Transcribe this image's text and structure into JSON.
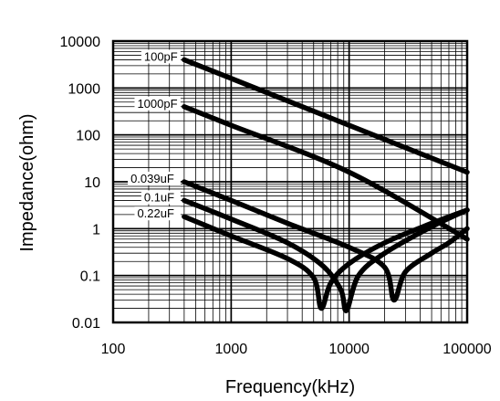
{
  "chart_data": {
    "type": "line",
    "title": "",
    "xlabel": "Frequency(kHz)",
    "ylabel": "Impedance(ohm)",
    "x_scale": "log",
    "y_scale": "log",
    "xlim": [
      100,
      100000
    ],
    "ylim": [
      0.01,
      10000
    ],
    "x_ticks": [
      {
        "value": 100,
        "label": "100"
      },
      {
        "value": 1000,
        "label": "1000"
      },
      {
        "value": 10000,
        "label": "10000"
      },
      {
        "value": 100000,
        "label": "100000"
      }
    ],
    "y_ticks": [
      {
        "value": 10000,
        "label": "10000"
      },
      {
        "value": 1000,
        "label": "1000"
      },
      {
        "value": 100,
        "label": "100"
      },
      {
        "value": 10,
        "label": "10"
      },
      {
        "value": 1,
        "label": "1"
      },
      {
        "value": 0.1,
        "label": "0.1"
      },
      {
        "value": 0.01,
        "label": "0.01"
      }
    ],
    "grid": true,
    "series": [
      {
        "name": "100pF",
        "points": [
          [
            400,
            4000
          ],
          [
            1000,
            1600
          ],
          [
            10000,
            160
          ],
          [
            100000,
            16
          ]
        ]
      },
      {
        "name": "1000pF",
        "points": [
          [
            400,
            400
          ],
          [
            1000,
            160
          ],
          [
            10000,
            16
          ],
          [
            100000,
            0.6
          ]
        ]
      },
      {
        "name": "0.039uF",
        "points": [
          [
            400,
            10
          ],
          [
            1000,
            4
          ],
          [
            3000,
            1.3
          ],
          [
            10000,
            0.4
          ],
          [
            20000,
            0.15
          ],
          [
            24000,
            0.03
          ],
          [
            30000,
            0.12
          ],
          [
            50000,
            0.3
          ],
          [
            70000,
            0.5
          ],
          [
            100000,
            1
          ]
        ]
      },
      {
        "name": "0.1uF",
        "points": [
          [
            400,
            4
          ],
          [
            1000,
            1.6
          ],
          [
            3000,
            0.5
          ],
          [
            6000,
            0.16
          ],
          [
            8500,
            0.05
          ],
          [
            9500,
            0.018
          ],
          [
            12000,
            0.1
          ],
          [
            20000,
            0.3
          ],
          [
            50000,
            1.1
          ],
          [
            100000,
            2.5
          ]
        ]
      },
      {
        "name": "0.22uF",
        "points": [
          [
            400,
            1.8
          ],
          [
            1000,
            0.7
          ],
          [
            3000,
            0.23
          ],
          [
            5000,
            0.09
          ],
          [
            5800,
            0.02
          ],
          [
            7000,
            0.07
          ],
          [
            10000,
            0.18
          ],
          [
            20000,
            0.5
          ],
          [
            50000,
            1.3
          ],
          [
            100000,
            2.5
          ]
        ]
      }
    ]
  }
}
